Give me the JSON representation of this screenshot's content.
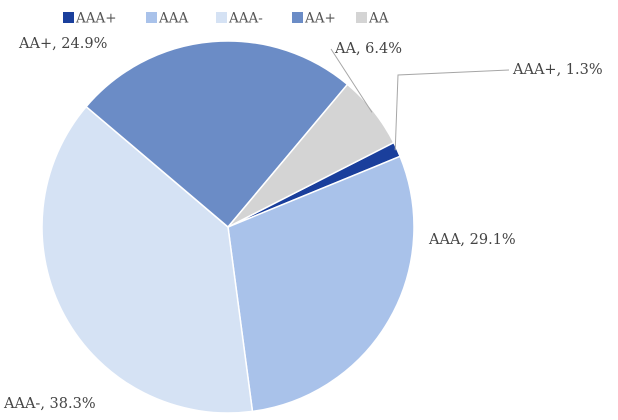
{
  "chart_data": {
    "type": "pie",
    "title": "",
    "legend_position": "top",
    "slices": [
      {
        "name": "AAA+",
        "value": 1.3,
        "color": "#1a3f9c",
        "label": "AAA+, 1.3%"
      },
      {
        "name": "AAA",
        "value": 29.1,
        "color": "#a9c2ea",
        "label": "AAA, 29.1%"
      },
      {
        "name": "AAA-",
        "value": 38.3,
        "color": "#d5e2f4",
        "label": "AAA-, 38.3%"
      },
      {
        "name": "AA+",
        "value": 24.9,
        "color": "#6b8cc6",
        "label": "AA+, 24.9%"
      },
      {
        "name": "AA",
        "value": 6.4,
        "color": "#d4d4d4",
        "label": "AA, 6.4%"
      }
    ]
  }
}
